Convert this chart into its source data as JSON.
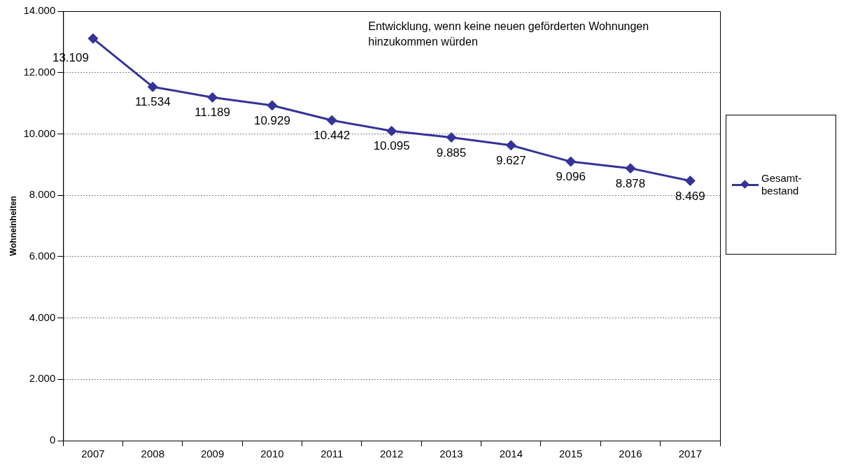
{
  "chart_data": {
    "type": "line",
    "ylabel": "Wohneinheiten",
    "categories": [
      "2007",
      "2008",
      "2009",
      "2010",
      "2011",
      "2012",
      "2013",
      "2014",
      "2015",
      "2016",
      "2017"
    ],
    "series": [
      {
        "name": "Gesamt-bestand",
        "color": "#333399",
        "values": [
          13109,
          11534,
          11189,
          10929,
          10442,
          10095,
          9885,
          9627,
          9096,
          8878,
          8469
        ],
        "value_labels": [
          "13.109",
          "11.534",
          "11.189",
          "10.929",
          "10.442",
          "10.095",
          "9.885",
          "9.627",
          "9.096",
          "8.878",
          "8.469"
        ]
      }
    ],
    "ylim": [
      0,
      14000
    ],
    "yticks": [
      {
        "value": 0,
        "label": "0"
      },
      {
        "value": 2000,
        "label": "2.000"
      },
      {
        "value": 4000,
        "label": "4.000"
      },
      {
        "value": 6000,
        "label": "6.000"
      },
      {
        "value": 8000,
        "label": "8.000"
      },
      {
        "value": 10000,
        "label": "10.000"
      },
      {
        "value": 12000,
        "label": "12.000"
      },
      {
        "value": 14000,
        "label": "14.000"
      }
    ],
    "annotations": [
      "Entwicklung, wenn keine neuen geförderten Wohnungen hinzukommen würden"
    ],
    "grid": "y",
    "legend": "right",
    "marker": "diamond",
    "line_style": "solid"
  }
}
